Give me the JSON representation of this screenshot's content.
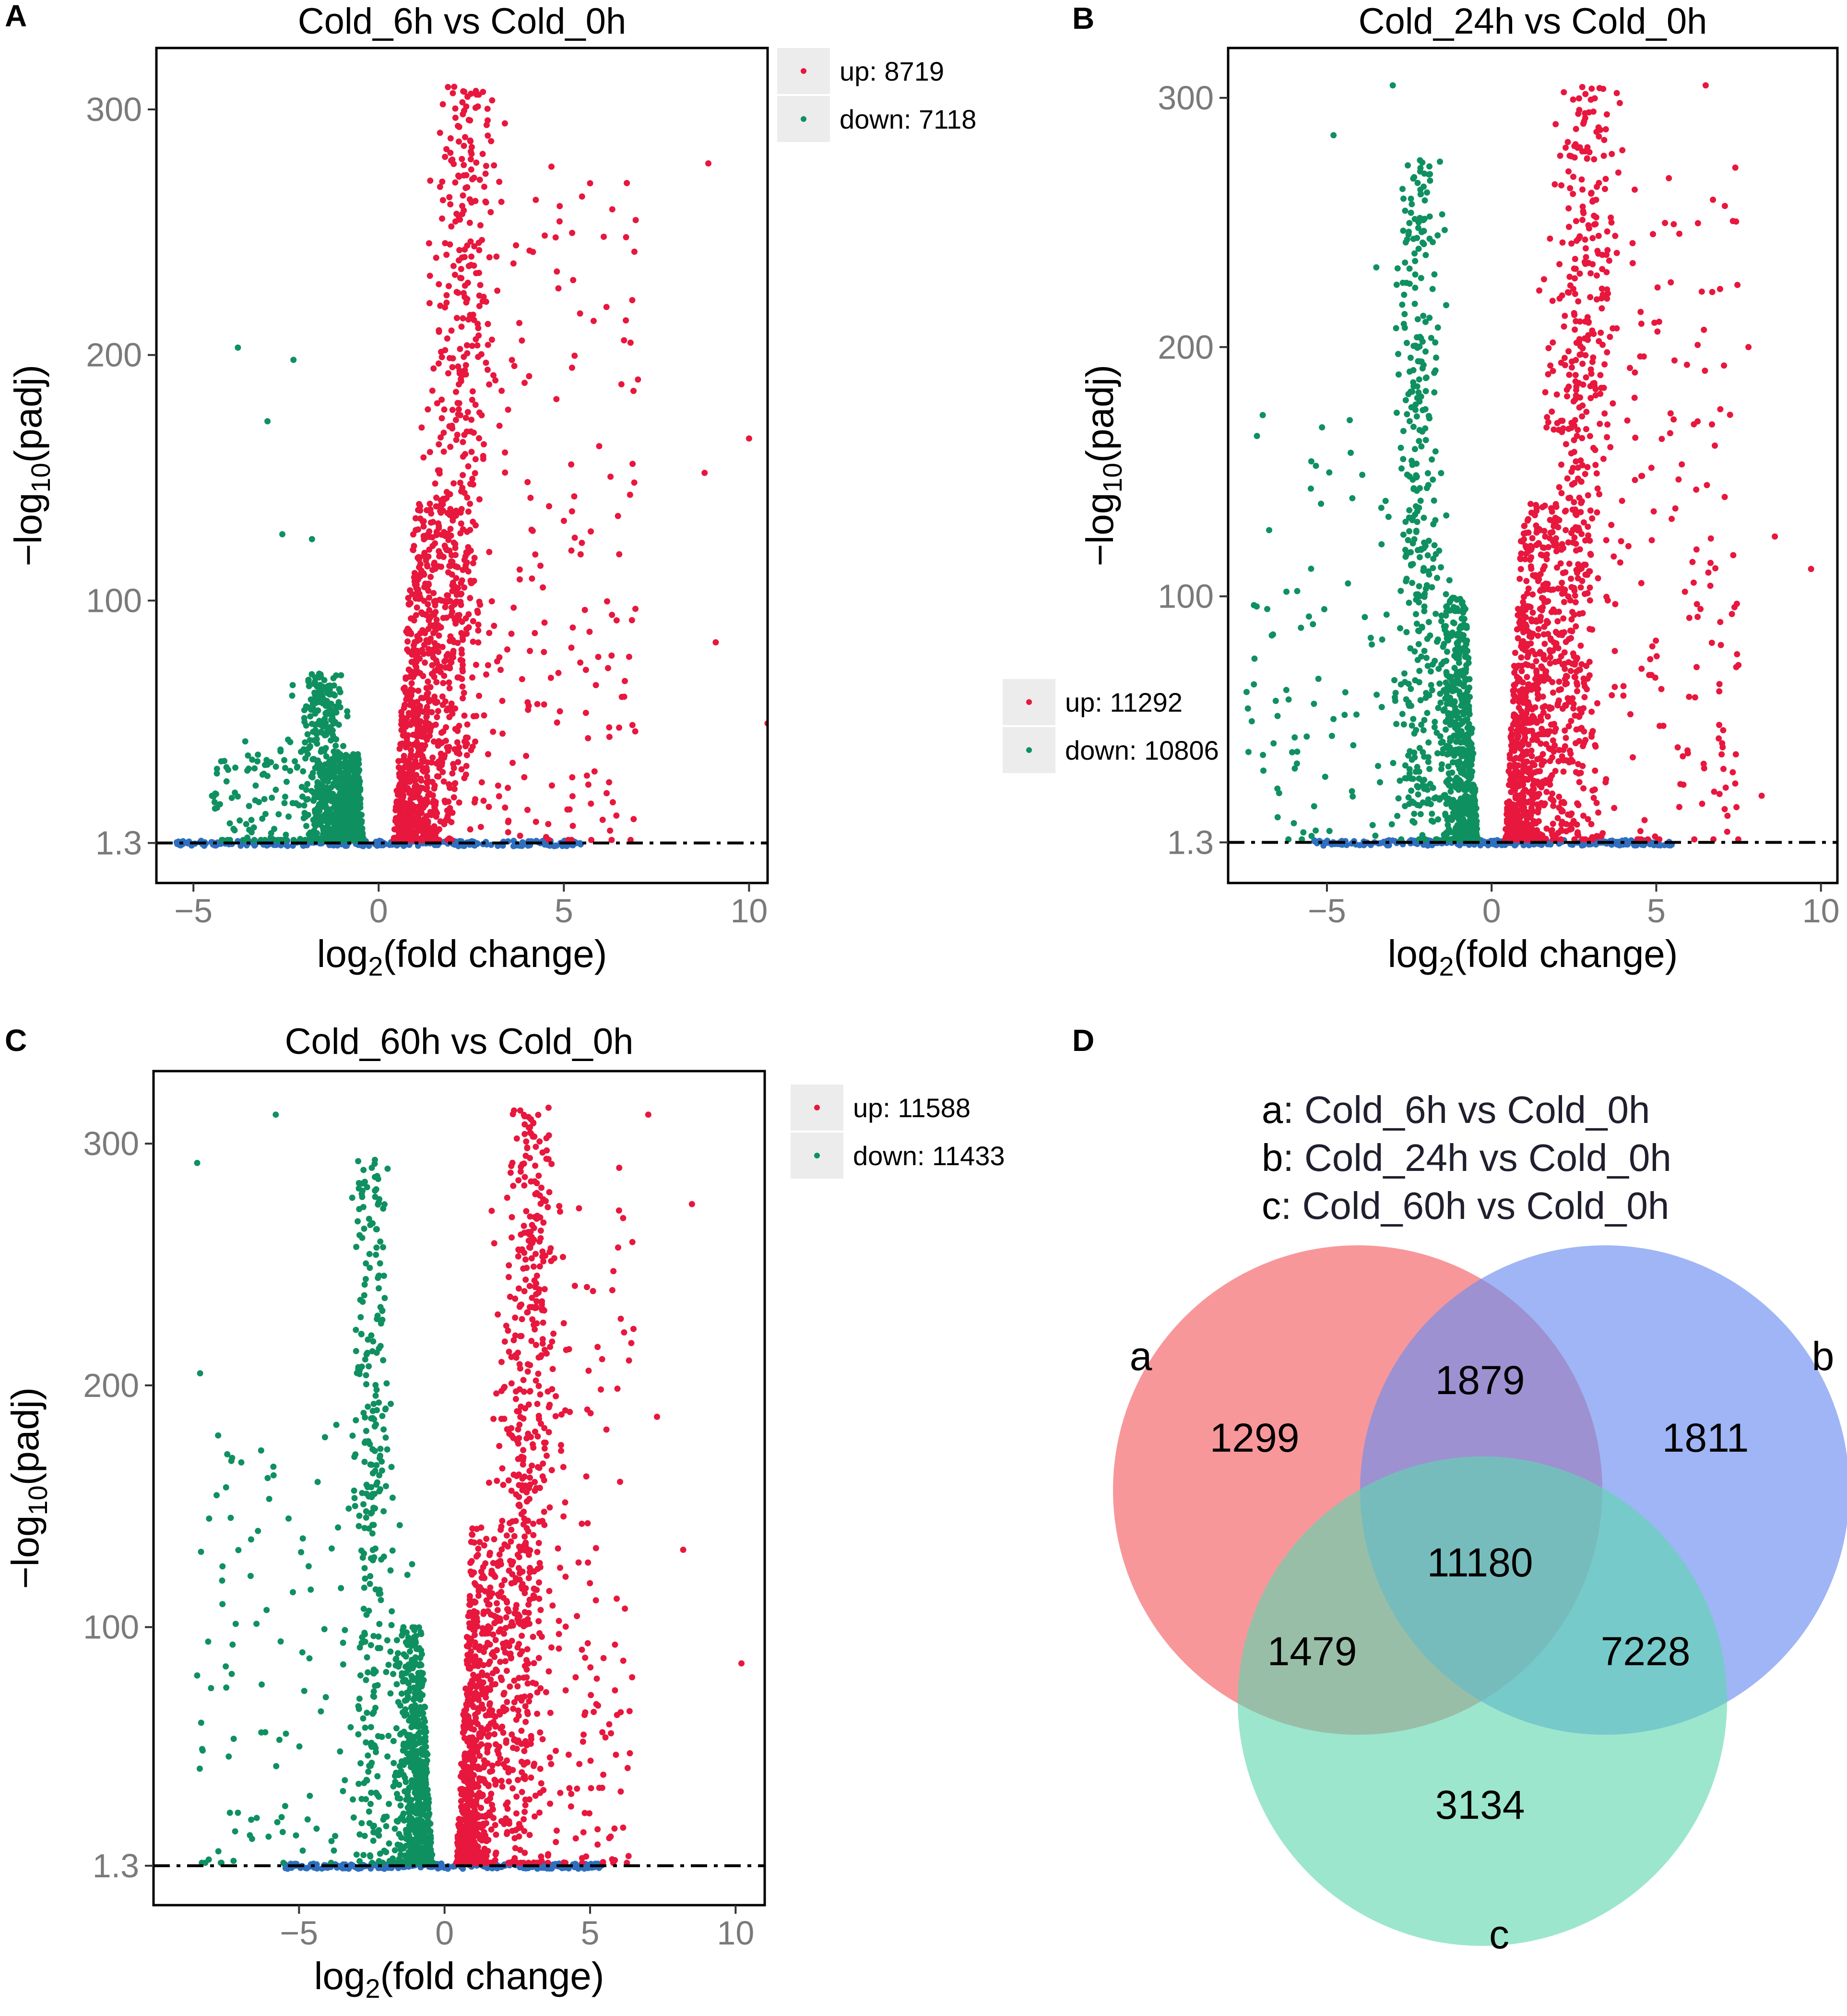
{
  "colors": {
    "up": "#e8173d",
    "down": "#0f9060",
    "ns": "#2f6fbf",
    "threshold": "#000000",
    "venn_a": "#f56f73",
    "venn_b": "#6e8ff0",
    "venn_c": "#5fd6b0"
  },
  "chart_data": [
    {
      "type": "scatter",
      "panel": "A",
      "title": "Cold_6h vs Cold_0h",
      "xlabel": "log2(fold change)",
      "xlabel_base": "log",
      "xlabel_sub": "2",
      "xlabel_rest": "(fold change)",
      "ylabel": "-log10(padj)",
      "ylabel_base": "−log",
      "ylabel_sub": "10",
      "ylabel_rest": "(padj)",
      "xlim": [
        -6,
        10.5
      ],
      "ylim": [
        -15,
        325
      ],
      "xticks": [
        -5,
        0,
        5,
        10
      ],
      "xtick_labels": [
        "−5",
        "0",
        "5",
        "10"
      ],
      "yticks": [
        1.3,
        100,
        200,
        300
      ],
      "ytick_labels": [
        "1.3",
        "100",
        "200",
        "300"
      ],
      "threshold": 1.3,
      "legend": {
        "up_label": "up",
        "up_count": "8719",
        "down_label": "down",
        "down_count": "7118",
        "position": "top-right-outside"
      },
      "shape": {
        "up_xmax": 7.0,
        "up_ymax": 310,
        "down_xmin": -4.5,
        "down_ymax": 75,
        "down_center": -1.3,
        "up_center": 1.5
      },
      "outliers_up": [
        [
          8.9,
          278
        ],
        [
          10.0,
          166
        ],
        [
          8.8,
          152
        ],
        [
          9.1,
          83
        ],
        [
          6.8,
          205
        ],
        [
          7.0,
          190
        ],
        [
          6.7,
          270
        ],
        [
          10.5,
          50
        ]
      ],
      "outliers_down": [
        [
          -3.8,
          203
        ],
        [
          -2.3,
          198
        ],
        [
          -3.0,
          173
        ],
        [
          -2.6,
          127
        ],
        [
          -1.8,
          125
        ]
      ]
    },
    {
      "type": "scatter",
      "panel": "B",
      "title": "Cold_24h vs Cold_0h",
      "xlabel": "log2(fold change)",
      "xlabel_base": "log",
      "xlabel_sub": "2",
      "xlabel_rest": "(fold change)",
      "ylabel": "-log10(padj)",
      "ylabel_base": "−log",
      "ylabel_sub": "10",
      "ylabel_rest": "(padj)",
      "xlim": [
        -8,
        10.5
      ],
      "ylim": [
        -15,
        320
      ],
      "xticks": [
        -5,
        0,
        5,
        10
      ],
      "xtick_labels": [
        "−5",
        "0",
        "5",
        "10"
      ],
      "yticks": [
        1.3,
        100,
        200,
        300
      ],
      "ytick_labels": [
        "1.3",
        "100",
        "200",
        "300"
      ],
      "threshold": 1.3,
      "legend": {
        "up_label": "up",
        "up_count": "11292",
        "down_label": "down",
        "down_count": "10806",
        "position": "left-outside"
      },
      "shape": {
        "up_xmax": 7.5,
        "up_ymax": 305,
        "down_xmin": -7.5,
        "down_ymax": 290,
        "down_center": -2.0,
        "up_center": 2.0
      },
      "outliers_up": [
        [
          9.7,
          111
        ],
        [
          8.6,
          124
        ],
        [
          7.8,
          200
        ],
        [
          8.2,
          20
        ],
        [
          6.5,
          305
        ],
        [
          7.4,
          272
        ]
      ],
      "outliers_down": [
        [
          -3.0,
          305
        ],
        [
          -4.8,
          285
        ],
        [
          -3.5,
          232
        ],
        [
          -7.2,
          75
        ],
        [
          -7.4,
          55
        ],
        [
          -6.5,
          52
        ]
      ]
    },
    {
      "type": "scatter",
      "panel": "C",
      "title": "Cold_60h vs Cold_0h",
      "xlabel": "log2(fold change)",
      "xlabel_base": "log",
      "xlabel_sub": "2",
      "xlabel_rest": "(fold change)",
      "ylabel": "-log10(padj)",
      "ylabel_base": "−log",
      "ylabel_sub": "10",
      "ylabel_rest": "(padj)",
      "xlim": [
        -10,
        11
      ],
      "ylim": [
        -15,
        330
      ],
      "xticks": [
        -5,
        0,
        5,
        10
      ],
      "xtick_labels": [
        "−5",
        "0",
        "5",
        "10"
      ],
      "yticks": [
        1.3,
        100,
        200,
        300
      ],
      "ytick_labels": [
        "1.3",
        "100",
        "200",
        "300"
      ],
      "threshold": 1.3,
      "legend": {
        "up_label": "up",
        "up_count": "11588",
        "down_label": "down",
        "down_count": "11433",
        "position": "top-right-outside"
      },
      "shape": {
        "up_xmax": 6.5,
        "up_ymax": 315,
        "down_xmin": -8.5,
        "down_ymax": 310,
        "down_center": -2.3,
        "up_center": 2.2
      },
      "outliers_up": [
        [
          8.5,
          275
        ],
        [
          10.2,
          85
        ],
        [
          8.2,
          132
        ],
        [
          7.0,
          312
        ],
        [
          7.3,
          187
        ],
        [
          6.0,
          290
        ]
      ],
      "outliers_down": [
        [
          -8.5,
          292
        ],
        [
          -8.4,
          205
        ],
        [
          -7.3,
          170
        ],
        [
          -8.5,
          80
        ],
        [
          -7.5,
          75
        ],
        [
          -5.8,
          312
        ]
      ]
    }
  ],
  "venn": {
    "panel": "D",
    "definitions": [
      {
        "key": "a",
        "label": "Cold_6h vs Cold_0h"
      },
      {
        "key": "b",
        "label": "Cold_24h vs Cold_0h"
      },
      {
        "key": "c",
        "label": "Cold_60h vs Cold_0h"
      }
    ],
    "set_labels": {
      "a": "a",
      "b": "b",
      "c": "c"
    },
    "regions": {
      "a_only": "1299",
      "b_only": "1811",
      "c_only": "3134",
      "ab": "1879",
      "ac": "1479",
      "bc": "7228",
      "abc": "11180"
    }
  }
}
